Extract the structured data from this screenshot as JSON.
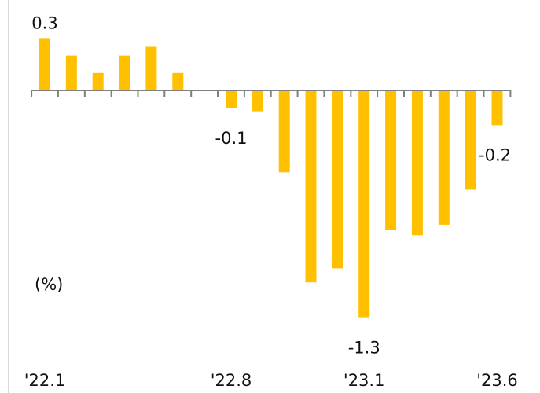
{
  "chart_data": {
    "type": "bar",
    "unit_label": "(%)",
    "categories": [
      "'22.1",
      "'22.2",
      "'22.3",
      "'22.4",
      "'22.5",
      "'22.6",
      "'22.7",
      "'22.8",
      "'22.9",
      "'22.10",
      "'22.11",
      "'22.12",
      "'23.1",
      "'23.2",
      "'23.3",
      "'23.4",
      "'23.5",
      "'23.6"
    ],
    "values": [
      0.3,
      0.2,
      0.1,
      0.2,
      0.25,
      0.1,
      null,
      -0.1,
      -0.12,
      -0.47,
      -1.1,
      -1.02,
      -1.3,
      -0.8,
      -0.83,
      -0.77,
      -0.57,
      -0.2
    ],
    "x_tick_labels": [
      {
        "index": 0,
        "text": "'22.1"
      },
      {
        "index": 7,
        "text": "'22.8"
      },
      {
        "index": 12,
        "text": "'23.1"
      },
      {
        "index": 17,
        "text": "'23.6"
      }
    ],
    "data_labels": [
      {
        "index": 0,
        "text": "0.3"
      },
      {
        "index": 7,
        "text": "-0.1"
      },
      {
        "index": 12,
        "text": "-1.3"
      },
      {
        "index": 17,
        "text": "-0.2"
      }
    ],
    "ylim": [
      -1.35,
      0.32
    ],
    "bar_color": "#FFC000",
    "axis_color": "#7f7f7f",
    "grid": false
  }
}
